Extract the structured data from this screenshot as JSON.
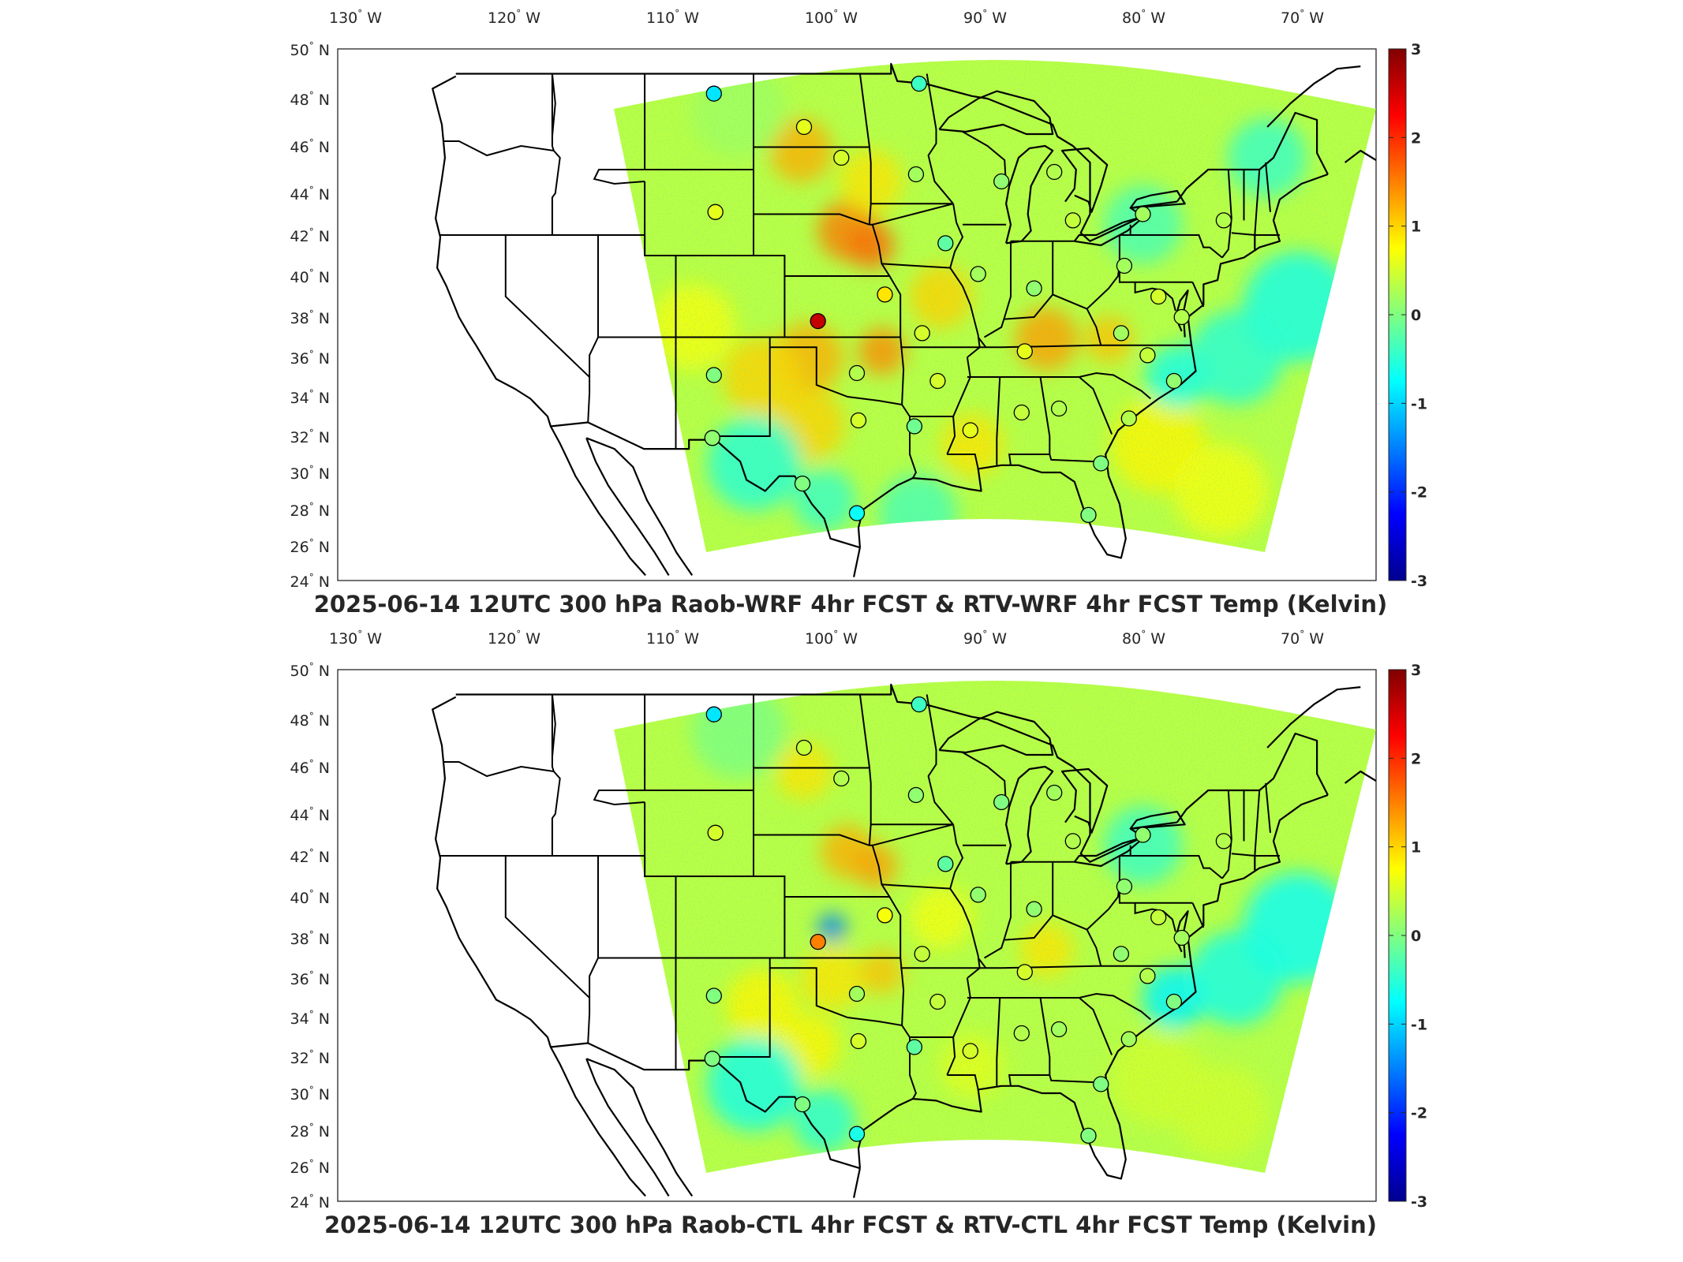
{
  "colors": {
    "colormap": [
      "#00008f",
      "#0000ff",
      "#0080ff",
      "#00ffff",
      "#80ff80",
      "#ffff00",
      "#ff8000",
      "#ff0000",
      "#800000"
    ],
    "field_base": "#b4e86a"
  },
  "panels": [
    {
      "title": "2025-06-14 12UTC 300 hPa Raob-WRF 4hr FCST & RTV-WRF 4hr FCST Temp (Kelvin)",
      "lon_ticks": [
        "130",
        "120",
        "110",
        "100",
        "90",
        "80",
        "70"
      ],
      "lat_ticks": [
        "50",
        "48",
        "46",
        "44",
        "42",
        "40",
        "38",
        "36",
        "34",
        "32",
        "30",
        "28",
        "26",
        "24"
      ],
      "colorbar_ticks": [
        "3",
        "2",
        "1",
        "0",
        "-1",
        "-2",
        "-3"
      ],
      "stations": [
        {
          "lon": -106.6,
          "lat": 48.2,
          "value": -0.9
        },
        {
          "lon": -93.4,
          "lat": 48.6,
          "value": -0.4
        },
        {
          "lon": -100.8,
          "lat": 46.8,
          "value": 0.6
        },
        {
          "lon": -98.4,
          "lat": 45.5,
          "value": 0.5
        },
        {
          "lon": -93.6,
          "lat": 44.8,
          "value": 0.2
        },
        {
          "lon": -88.1,
          "lat": 44.5,
          "value": 0.1
        },
        {
          "lon": -84.7,
          "lat": 44.9,
          "value": 0.3
        },
        {
          "lon": -106.5,
          "lat": 43.1,
          "value": 0.6
        },
        {
          "lon": -83.5,
          "lat": 42.7,
          "value": 0.4
        },
        {
          "lon": -79.0,
          "lat": 43.0,
          "value": 0.2
        },
        {
          "lon": -73.8,
          "lat": 42.7,
          "value": 0.3
        },
        {
          "lon": -91.7,
          "lat": 41.6,
          "value": -0.2
        },
        {
          "lon": -89.6,
          "lat": 40.1,
          "value": 0.2
        },
        {
          "lon": -80.2,
          "lat": 40.5,
          "value": 0.2
        },
        {
          "lon": -95.6,
          "lat": 39.1,
          "value": 0.9
        },
        {
          "lon": -86.0,
          "lat": 39.4,
          "value": 0.1
        },
        {
          "lon": -78.0,
          "lat": 39.0,
          "value": 0.5
        },
        {
          "lon": -76.5,
          "lat": 38.0,
          "value": 0.3
        },
        {
          "lon": -99.9,
          "lat": 37.8,
          "value": 2.6
        },
        {
          "lon": -93.2,
          "lat": 37.2,
          "value": 0.5
        },
        {
          "lon": -80.4,
          "lat": 37.2,
          "value": 0.2
        },
        {
          "lon": -86.6,
          "lat": 36.3,
          "value": 0.6
        },
        {
          "lon": -78.7,
          "lat": 36.1,
          "value": 0.4
        },
        {
          "lon": -106.6,
          "lat": 35.1,
          "value": 0.0
        },
        {
          "lon": -97.4,
          "lat": 35.2,
          "value": 0.3
        },
        {
          "lon": -92.2,
          "lat": 34.8,
          "value": 0.5
        },
        {
          "lon": -77.0,
          "lat": 34.8,
          "value": 0.1
        },
        {
          "lon": -97.3,
          "lat": 32.8,
          "value": 0.5
        },
        {
          "lon": -86.8,
          "lat": 33.2,
          "value": 0.4
        },
        {
          "lon": -84.4,
          "lat": 33.4,
          "value": 0.3
        },
        {
          "lon": -79.9,
          "lat": 32.9,
          "value": 0.3
        },
        {
          "lon": -93.7,
          "lat": 32.5,
          "value": -0.1
        },
        {
          "lon": -90.1,
          "lat": 32.3,
          "value": 0.6
        },
        {
          "lon": -106.7,
          "lat": 31.9,
          "value": 0.1
        },
        {
          "lon": -81.7,
          "lat": 30.5,
          "value": 0.0
        },
        {
          "lon": -100.9,
          "lat": 29.4,
          "value": 0.0
        },
        {
          "lon": -97.4,
          "lat": 27.8,
          "value": -0.7
        },
        {
          "lon": -82.5,
          "lat": 27.7,
          "value": 0.0
        }
      ]
    },
    {
      "title": "2025-06-14 12UTC 300 hPa Raob-CTL 4hr FCST & RTV-CTL 4hr FCST Temp (Kelvin)",
      "lon_ticks": [
        "130",
        "120",
        "110",
        "100",
        "90",
        "80",
        "70"
      ],
      "lat_ticks": [
        "50",
        "48",
        "46",
        "44",
        "42",
        "40",
        "38",
        "36",
        "34",
        "32",
        "30",
        "28",
        "26",
        "24"
      ],
      "colorbar_ticks": [
        "3",
        "2",
        "1",
        "0",
        "-1",
        "-2",
        "-3"
      ],
      "stations": [
        {
          "lon": -106.6,
          "lat": 48.2,
          "value": -0.9
        },
        {
          "lon": -93.4,
          "lat": 48.6,
          "value": -0.4
        },
        {
          "lon": -100.8,
          "lat": 46.8,
          "value": 0.4
        },
        {
          "lon": -98.4,
          "lat": 45.5,
          "value": 0.3
        },
        {
          "lon": -93.6,
          "lat": 44.8,
          "value": 0.1
        },
        {
          "lon": -88.1,
          "lat": 44.5,
          "value": 0.0
        },
        {
          "lon": -84.7,
          "lat": 44.9,
          "value": 0.2
        },
        {
          "lon": -106.5,
          "lat": 43.1,
          "value": 0.5
        },
        {
          "lon": -83.5,
          "lat": 42.7,
          "value": 0.3
        },
        {
          "lon": -79.0,
          "lat": 43.0,
          "value": 0.1
        },
        {
          "lon": -73.8,
          "lat": 42.7,
          "value": 0.3
        },
        {
          "lon": -91.7,
          "lat": 41.6,
          "value": -0.2
        },
        {
          "lon": -89.6,
          "lat": 40.1,
          "value": 0.1
        },
        {
          "lon": -80.2,
          "lat": 40.5,
          "value": 0.1
        },
        {
          "lon": -95.6,
          "lat": 39.1,
          "value": 0.7
        },
        {
          "lon": -86.0,
          "lat": 39.4,
          "value": 0.1
        },
        {
          "lon": -78.0,
          "lat": 39.0,
          "value": 0.4
        },
        {
          "lon": -76.5,
          "lat": 38.0,
          "value": 0.2
        },
        {
          "lon": -99.9,
          "lat": 37.8,
          "value": 1.5
        },
        {
          "lon": -93.2,
          "lat": 37.2,
          "value": 0.4
        },
        {
          "lon": -80.4,
          "lat": 37.2,
          "value": 0.1
        },
        {
          "lon": -86.6,
          "lat": 36.3,
          "value": 0.5
        },
        {
          "lon": -78.7,
          "lat": 36.1,
          "value": 0.3
        },
        {
          "lon": -106.6,
          "lat": 35.1,
          "value": 0.0
        },
        {
          "lon": -97.4,
          "lat": 35.2,
          "value": 0.2
        },
        {
          "lon": -92.2,
          "lat": 34.8,
          "value": 0.4
        },
        {
          "lon": -77.0,
          "lat": 34.8,
          "value": 0.0
        },
        {
          "lon": -97.3,
          "lat": 32.8,
          "value": 0.5
        },
        {
          "lon": -86.8,
          "lat": 33.2,
          "value": 0.3
        },
        {
          "lon": -84.4,
          "lat": 33.4,
          "value": 0.2
        },
        {
          "lon": -79.9,
          "lat": 32.9,
          "value": 0.2
        },
        {
          "lon": -93.7,
          "lat": 32.5,
          "value": -0.2
        },
        {
          "lon": -90.1,
          "lat": 32.3,
          "value": 0.5
        },
        {
          "lon": -106.7,
          "lat": 31.9,
          "value": 0.0
        },
        {
          "lon": -81.7,
          "lat": 30.5,
          "value": 0.0
        },
        {
          "lon": -100.9,
          "lat": 29.4,
          "value": 0.0
        },
        {
          "lon": -97.4,
          "lat": 27.8,
          "value": -0.6
        },
        {
          "lon": -82.5,
          "lat": 27.7,
          "value": 0.0
        }
      ]
    }
  ]
}
